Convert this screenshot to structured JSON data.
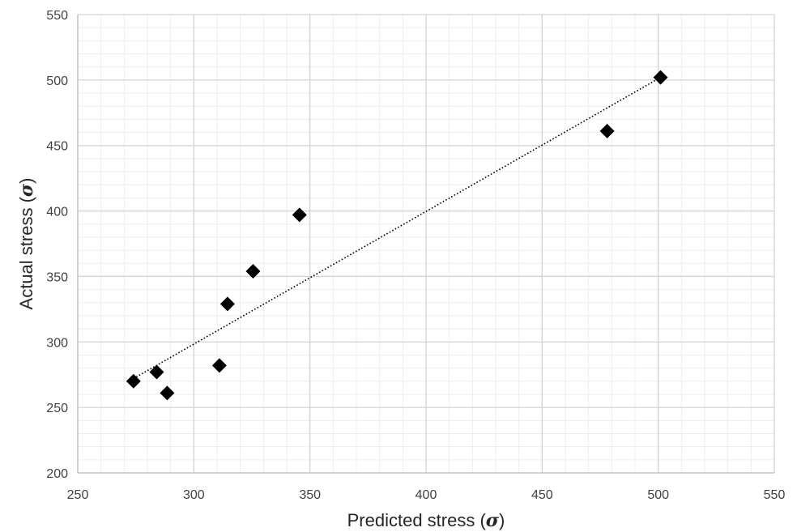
{
  "chart_data": {
    "type": "scatter",
    "title": "",
    "xlabel": "Predicted stress (",
    "ylabel": "Actual stress (",
    "xlabel_symbol": "σ",
    "ylabel_symbol": "σ",
    "label_close": ")",
    "xlim": [
      250,
      550
    ],
    "ylim": [
      200,
      550
    ],
    "x_major_ticks": [
      250,
      300,
      350,
      400,
      450,
      500,
      550
    ],
    "y_major_ticks": [
      200,
      250,
      300,
      350,
      400,
      450,
      500,
      550
    ],
    "x_minor_step": 10,
    "y_minor_step": 10,
    "grid": true,
    "legend": "none",
    "marker": "diamond",
    "marker_color": "#000000",
    "trendline": {
      "style": "dotted",
      "color": "#000000",
      "x": [
        274,
        501
      ],
      "y": [
        272,
        502
      ]
    },
    "series": [
      {
        "x": [
          274,
          284,
          288.5,
          311,
          314.5,
          325.5,
          345.5,
          478,
          501
        ],
        "y": [
          270,
          277,
          261,
          282,
          329,
          354,
          397,
          461,
          502
        ]
      }
    ]
  }
}
